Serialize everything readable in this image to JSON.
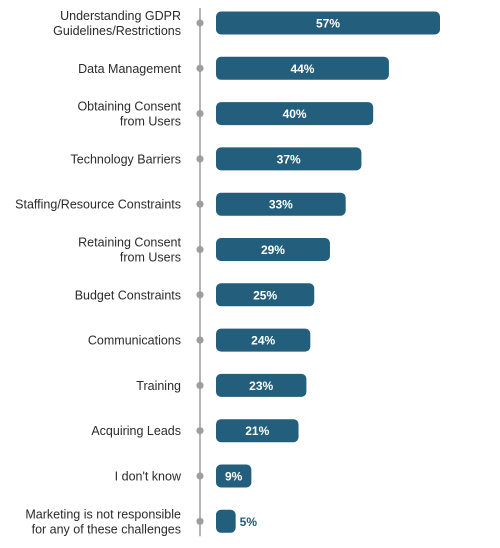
{
  "chart_data": {
    "type": "bar",
    "orientation": "horizontal",
    "title": "",
    "xlabel": "",
    "ylabel": "",
    "xlim": [
      0,
      60
    ],
    "grid": false,
    "legend": "none",
    "bar_color": "#235e7c",
    "axis_color": "#9e9e9e",
    "categories": [
      "Understanding GDPR\nGuidelines/Restrictions",
      "Data Management",
      "Obtaining Consent\nfrom Users",
      "Technology Barriers",
      "Staffing/Resource Constraints",
      "Retaining Consent\nfrom Users",
      "Budget Constraints",
      "Communications",
      "Training",
      "Acquiring Leads",
      "I don't know",
      "Marketing is not responsible\nfor any of these challenges"
    ],
    "values": [
      57,
      44,
      40,
      37,
      33,
      29,
      25,
      24,
      23,
      21,
      9,
      5
    ],
    "value_labels": [
      "57%",
      "44%",
      "40%",
      "37%",
      "33%",
      "29%",
      "25%",
      "24%",
      "23%",
      "21%",
      "9%",
      "5%"
    ]
  }
}
